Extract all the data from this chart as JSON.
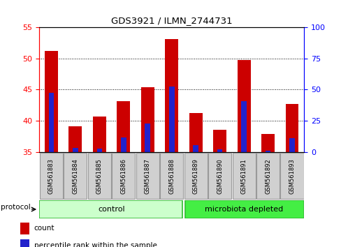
{
  "title": "GDS3921 / ILMN_2744731",
  "samples": [
    "GSM561883",
    "GSM561884",
    "GSM561885",
    "GSM561886",
    "GSM561887",
    "GSM561888",
    "GSM561889",
    "GSM561890",
    "GSM561891",
    "GSM561892",
    "GSM561893"
  ],
  "count_values": [
    51.2,
    39.1,
    40.7,
    43.1,
    45.4,
    53.1,
    41.2,
    38.6,
    49.7,
    37.9,
    42.7
  ],
  "percentile_values": [
    44.5,
    35.6,
    35.5,
    37.3,
    39.5,
    45.5,
    36.1,
    35.4,
    43.1,
    35.2,
    37.2
  ],
  "ylim_left": [
    35,
    55
  ],
  "ylim_right": [
    0,
    100
  ],
  "yticks_left": [
    35,
    40,
    45,
    50,
    55
  ],
  "yticks_right": [
    0,
    25,
    50,
    75,
    100
  ],
  "bar_color": "#cc0000",
  "percentile_color": "#2222cc",
  "control_count": 6,
  "control_label": "control",
  "microbiota_label": "microbiota depleted",
  "control_color": "#ccffcc",
  "microbiota_color": "#44ee44",
  "protocol_label": "protocol",
  "legend_count": "count",
  "legend_percentile": "percentile rank within the sample",
  "bar_width": 0.55,
  "pct_bar_width": 0.22,
  "sample_box_color": "#d0d0d0",
  "sample_box_edge": "#999999"
}
